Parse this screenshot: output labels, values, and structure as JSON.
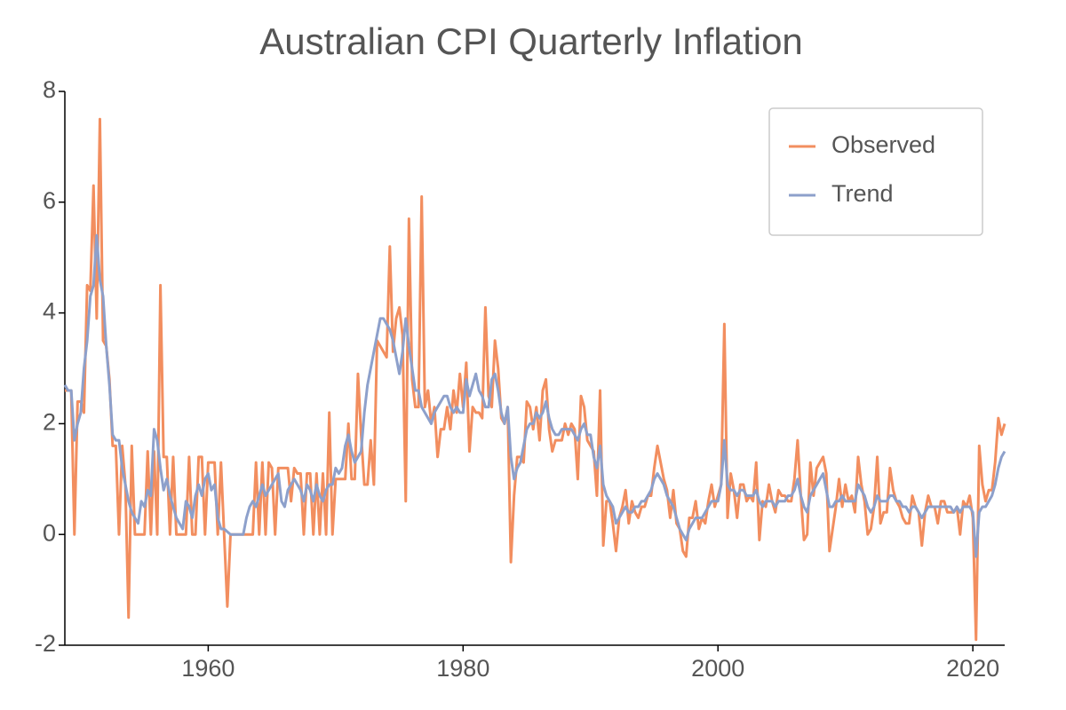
{
  "chart_data": {
    "type": "line",
    "title": "Australian CPI Quarterly Inflation",
    "x": [
      1948.75,
      1949,
      1949.25,
      1949.5,
      1949.75,
      1950,
      1950.25,
      1950.5,
      1950.75,
      1951,
      1951.25,
      1951.5,
      1951.75,
      1952,
      1952.25,
      1952.5,
      1952.75,
      1953,
      1953.25,
      1953.5,
      1953.75,
      1954,
      1954.25,
      1954.5,
      1954.75,
      1955,
      1955.25,
      1955.5,
      1955.75,
      1956,
      1956.25,
      1956.5,
      1956.75,
      1957,
      1957.25,
      1957.5,
      1957.75,
      1958,
      1958.25,
      1958.5,
      1958.75,
      1959,
      1959.25,
      1959.5,
      1959.75,
      1960,
      1960.25,
      1960.5,
      1960.75,
      1961,
      1961.25,
      1961.5,
      1961.75,
      1962,
      1962.25,
      1962.5,
      1962.75,
      1963,
      1963.25,
      1963.5,
      1963.75,
      1964,
      1964.25,
      1964.5,
      1964.75,
      1965,
      1965.25,
      1965.5,
      1965.75,
      1966,
      1966.25,
      1966.5,
      1966.75,
      1967,
      1967.25,
      1967.5,
      1967.75,
      1968,
      1968.25,
      1968.5,
      1968.75,
      1969,
      1969.25,
      1969.5,
      1969.75,
      1970,
      1970.25,
      1970.5,
      1970.75,
      1971,
      1971.25,
      1971.5,
      1971.75,
      1972,
      1972.25,
      1972.5,
      1972.75,
      1973,
      1973.25,
      1973.5,
      1973.75,
      1974,
      1974.25,
      1974.5,
      1974.75,
      1975,
      1975.25,
      1975.5,
      1975.75,
      1976,
      1976.25,
      1976.5,
      1976.75,
      1977,
      1977.25,
      1977.5,
      1977.75,
      1978,
      1978.25,
      1978.5,
      1978.75,
      1979,
      1979.25,
      1979.5,
      1979.75,
      1980,
      1980.25,
      1980.5,
      1980.75,
      1981,
      1981.25,
      1981.5,
      1981.75,
      1982,
      1982.25,
      1982.5,
      1982.75,
      1983,
      1983.25,
      1983.5,
      1983.75,
      1984,
      1984.25,
      1984.5,
      1984.75,
      1985,
      1985.25,
      1985.5,
      1985.75,
      1986,
      1986.25,
      1986.5,
      1986.75,
      1987,
      1987.25,
      1987.5,
      1987.75,
      1988,
      1988.25,
      1988.5,
      1988.75,
      1989,
      1989.25,
      1989.5,
      1989.75,
      1990,
      1990.25,
      1990.5,
      1990.75,
      1991,
      1991.25,
      1991.5,
      1991.75,
      1992,
      1992.25,
      1992.5,
      1992.75,
      1993,
      1993.25,
      1993.5,
      1993.75,
      1994,
      1994.25,
      1994.5,
      1994.75,
      1995,
      1995.25,
      1995.5,
      1995.75,
      1996,
      1996.25,
      1996.5,
      1996.75,
      1997,
      1997.25,
      1997.5,
      1997.75,
      1998,
      1998.25,
      1998.5,
      1998.75,
      1999,
      1999.25,
      1999.5,
      1999.75,
      2000,
      2000.25,
      2000.5,
      2000.75,
      2001,
      2001.25,
      2001.5,
      2001.75,
      2002,
      2002.25,
      2002.5,
      2002.75,
      2003,
      2003.25,
      2003.5,
      2003.75,
      2004,
      2004.25,
      2004.5,
      2004.75,
      2005,
      2005.25,
      2005.5,
      2005.75,
      2006,
      2006.25,
      2006.5,
      2006.75,
      2007,
      2007.25,
      2007.5,
      2007.75,
      2008,
      2008.25,
      2008.5,
      2008.75,
      2009,
      2009.25,
      2009.5,
      2009.75,
      2010,
      2010.25,
      2010.5,
      2010.75,
      2011,
      2011.25,
      2011.5,
      2011.75,
      2012,
      2012.25,
      2012.5,
      2012.75,
      2013,
      2013.25,
      2013.5,
      2013.75,
      2014,
      2014.25,
      2014.5,
      2014.75,
      2015,
      2015.25,
      2015.5,
      2015.75,
      2016,
      2016.25,
      2016.5,
      2016.75,
      2017,
      2017.25,
      2017.5,
      2017.75,
      2018,
      2018.25,
      2018.5,
      2018.75,
      2019,
      2019.25,
      2019.5,
      2019.75,
      2020,
      2020.25,
      2020.5,
      2020.75,
      2021,
      2021.25,
      2021.5,
      2021.75,
      2022,
      2022.25,
      2022.5
    ],
    "series": [
      {
        "name": "Observed",
        "color": "#f28e5f",
        "values": [
          2.6,
          2.6,
          2.6,
          0,
          2.4,
          2.4,
          2.2,
          4.5,
          4.4,
          6.3,
          3.9,
          7.5,
          3.5,
          3.4,
          2.8,
          1.6,
          1.6,
          0,
          1.6,
          0.9,
          -1.5,
          1.6,
          0,
          0,
          0,
          0,
          1.5,
          0,
          1.5,
          0,
          4.5,
          1.4,
          1.4,
          0,
          1.4,
          0,
          0,
          0,
          0,
          1.4,
          0,
          0,
          1.4,
          1.4,
          0,
          1.3,
          1.3,
          1.3,
          0,
          1.3,
          0,
          -1.3,
          0,
          0,
          0,
          0,
          0,
          0,
          0,
          0,
          1.3,
          0,
          1.3,
          0,
          1.3,
          1.2,
          0,
          1.2,
          1.2,
          1.2,
          1.2,
          0.6,
          1.2,
          1.1,
          1.1,
          0,
          1.1,
          1.1,
          0,
          1.1,
          0,
          1.1,
          0,
          2.2,
          0,
          1.0,
          1.0,
          1.0,
          1.0,
          2.0,
          1.0,
          1.0,
          2.9,
          1.8,
          0.9,
          0.9,
          1.7,
          0.9,
          3.5,
          3.4,
          3.3,
          3.2,
          5.2,
          3.3,
          3.9,
          4.1,
          3.6,
          0.6,
          5.7,
          2.8,
          2.3,
          2.3,
          6.1,
          2.3,
          2.6,
          2.0,
          2.3,
          1.4,
          1.9,
          1.9,
          2.3,
          1.9,
          2.6,
          2.2,
          2.9,
          2.3,
          3.1,
          1.5,
          2.3,
          2.2,
          2.2,
          2.1,
          4.1,
          2.5,
          2.3,
          3.5,
          3.0,
          2.1,
          2.0,
          2.3,
          -0.5,
          0.7,
          1.4,
          1.4,
          1.3,
          2.4,
          2.3,
          1.9,
          2.3,
          1.7,
          2.6,
          2.8,
          1.9,
          1.5,
          1.7,
          1.7,
          1.7,
          2.0,
          1.8,
          2.0,
          1.9,
          1.0,
          2.5,
          2.3,
          1.7,
          1.6,
          1.5,
          0.7,
          2.6,
          -0.2,
          0.6,
          0.6,
          0.2,
          -0.3,
          0.3,
          0.5,
          0.8,
          0.2,
          0.6,
          0.4,
          0.3,
          0.5,
          0.5,
          0.7,
          0.7,
          1.2,
          1.6,
          1.3,
          1.0,
          0.8,
          0.3,
          0.8,
          0.2,
          0.1,
          -0.3,
          -0.4,
          0.3,
          0.3,
          0.6,
          0.1,
          0.3,
          0.2,
          0.6,
          0.9,
          0.5,
          0.7,
          0.9,
          3.8,
          0.3,
          1.1,
          0.8,
          0.3,
          0.9,
          0.9,
          0.6,
          0.7,
          0.6,
          1.3,
          -0.1,
          0.6,
          0.5,
          0.9,
          0.6,
          0.4,
          0.8,
          0.7,
          0.7,
          0.6,
          0.6,
          1.0,
          1.7,
          0.7,
          -0.1,
          0.0,
          1.3,
          0.7,
          1.2,
          1.3,
          1.4,
          1.1,
          -0.3,
          0.1,
          0.5,
          1.0,
          0.5,
          0.9,
          0.6,
          0.7,
          0.4,
          1.4,
          0.9,
          0.6,
          0.0,
          0.1,
          0.5,
          1.4,
          0.2,
          0.4,
          0.4,
          1.2,
          0.8,
          0.6,
          0.5,
          0.3,
          0.2,
          0.2,
          0.7,
          0.5,
          0.4,
          -0.2,
          0.4,
          0.7,
          0.5,
          0.5,
          0.2,
          0.6,
          0.6,
          0.4,
          0.4,
          0.4,
          0.5,
          0.0,
          0.6,
          0.5,
          0.7,
          0.3,
          -1.9,
          1.6,
          0.9,
          0.6,
          0.8,
          0.8,
          1.3,
          2.1,
          1.8,
          2.0
        ]
      },
      {
        "name": "Trend",
        "color": "#8da0cb",
        "values": [
          2.7,
          2.6,
          2.6,
          1.7,
          2.0,
          2.2,
          3.0,
          3.5,
          4.3,
          4.5,
          5.4,
          4.6,
          4.3,
          3.4,
          2.7,
          1.8,
          1.7,
          1.7,
          1.2,
          0.9,
          0.6,
          0.4,
          0.3,
          0.2,
          0.6,
          0.5,
          0.8,
          0.7,
          1.9,
          1.7,
          1.2,
          0.8,
          1.0,
          0.7,
          0.5,
          0.3,
          0.2,
          0.1,
          0.6,
          0.5,
          0.3,
          0.7,
          0.9,
          0.7,
          1.0,
          1.1,
          0.8,
          0.9,
          0.3,
          0.1,
          0.1,
          0.05,
          0.0,
          0,
          0,
          0,
          0,
          0.3,
          0.5,
          0.6,
          0.5,
          0.7,
          0.9,
          0.7,
          0.8,
          0.9,
          1.0,
          1.1,
          0.6,
          0.5,
          0.8,
          0.9,
          1.0,
          0.9,
          0.8,
          0.6,
          0.9,
          0.8,
          0.6,
          0.9,
          0.7,
          0.6,
          0.8,
          0.9,
          0.9,
          1.2,
          1.1,
          1.2,
          1.6,
          1.8,
          1.5,
          1.3,
          1.4,
          1.5,
          2.2,
          2.7,
          3.0,
          3.3,
          3.6,
          3.9,
          3.9,
          3.8,
          3.7,
          3.5,
          3.2,
          2.9,
          3.3,
          3.9,
          3.4,
          3.0,
          2.6,
          2.6,
          2.3,
          2.2,
          2.1,
          2.0,
          2.2,
          2.3,
          2.4,
          2.5,
          2.5,
          2.3,
          2.2,
          2.3,
          2.2,
          2.2,
          2.8,
          2.5,
          2.7,
          2.9,
          2.6,
          2.5,
          2.3,
          2.3,
          2.8,
          2.9,
          2.6,
          2.2,
          2.0,
          2.3,
          1.4,
          1.0,
          1.2,
          1.3,
          1.6,
          1.9,
          2.0,
          2.0,
          2.2,
          2.1,
          2.2,
          2.4,
          2.1,
          1.9,
          1.8,
          1.8,
          1.9,
          1.9,
          1.9,
          1.9,
          1.8,
          1.7,
          1.9,
          2.0,
          1.8,
          1.8,
          1.4,
          1.2,
          1.6,
          0.9,
          0.7,
          0.6,
          0.5,
          0.2,
          0.3,
          0.4,
          0.5,
          0.4,
          0.4,
          0.5,
          0.5,
          0.6,
          0.6,
          0.7,
          0.8,
          1.0,
          1.1,
          1.0,
          0.9,
          0.7,
          0.6,
          0.5,
          0.3,
          0.1,
          0.0,
          -0.1,
          0.1,
          0.2,
          0.3,
          0.3,
          0.3,
          0.4,
          0.5,
          0.6,
          0.6,
          0.6,
          0.9,
          1.7,
          0.9,
          0.8,
          0.8,
          0.7,
          0.8,
          0.8,
          0.7,
          0.7,
          0.7,
          0.8,
          0.6,
          0.5,
          0.6,
          0.6,
          0.6,
          0.5,
          0.6,
          0.6,
          0.6,
          0.7,
          0.7,
          0.8,
          1.0,
          0.7,
          0.5,
          0.4,
          0.7,
          0.8,
          0.9,
          1.0,
          1.1,
          0.8,
          0.5,
          0.5,
          0.6,
          0.6,
          0.7,
          0.6,
          0.6,
          0.6,
          0.6,
          0.9,
          0.8,
          0.7,
          0.5,
          0.4,
          0.5,
          0.7,
          0.6,
          0.6,
          0.6,
          0.7,
          0.7,
          0.6,
          0.6,
          0.5,
          0.5,
          0.4,
          0.5,
          0.5,
          0.4,
          0.3,
          0.4,
          0.5,
          0.5,
          0.5,
          0.5,
          0.5,
          0.5,
          0.5,
          0.5,
          0.4,
          0.5,
          0.4,
          0.5,
          0.5,
          0.5,
          0.4,
          -0.4,
          0.4,
          0.5,
          0.5,
          0.6,
          0.7,
          0.9,
          1.2,
          1.4,
          1.5
        ]
      }
    ],
    "xlim": [
      1948.75,
      2022.5
    ],
    "xticks": [
      1960,
      1980,
      2000,
      2020
    ],
    "ylim": [
      -2,
      8
    ],
    "yticks": [
      -2,
      0,
      2,
      4,
      6,
      8
    ],
    "grid": false,
    "legend": "upper right"
  }
}
